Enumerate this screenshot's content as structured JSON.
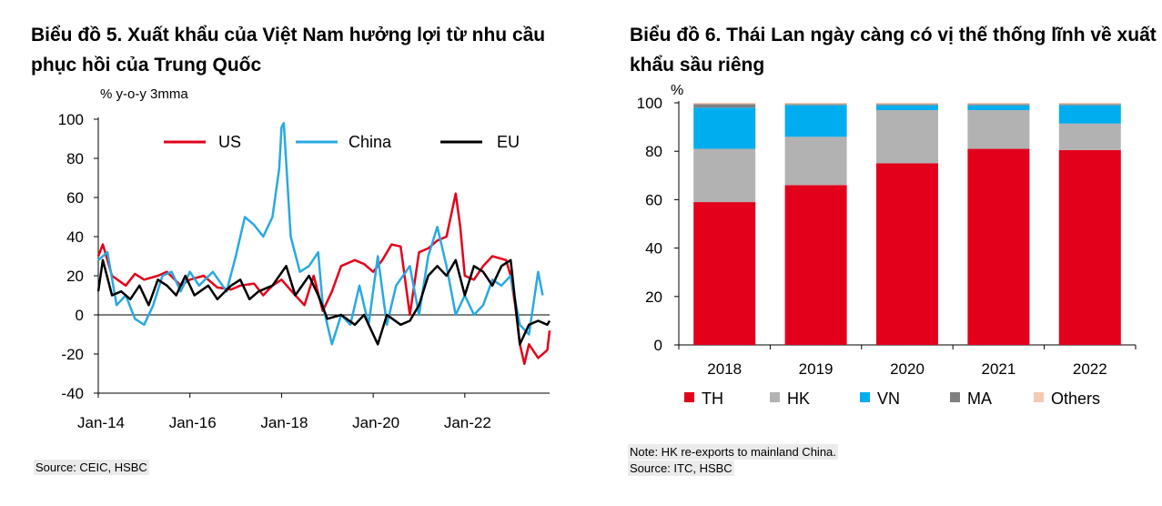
{
  "left_panel": {
    "title": "Biểu đồ 5. Xuất khẩu của Việt Nam hưởng lợi từ nhu cầu phục hồi của Trung Quốc",
    "source": "Source: CEIC, HSBC"
  },
  "right_panel": {
    "title": "Biểu đồ 6. Thái Lan ngày càng có vị thế thống lĩnh về xuất khẩu sầu riêng",
    "note": "Note: HK re-exports to mainland China.",
    "source": "Source: ITC, HSBC"
  },
  "chart_data": [
    {
      "type": "line",
      "ylabel": "% y-o-y 3mma",
      "ylim": [
        -40,
        100
      ],
      "yticks": [
        "100",
        "80",
        "60",
        "40",
        "20",
        "0",
        "-20",
        "-40"
      ],
      "xticks": [
        "Jan-14",
        "Jan-16",
        "Jan-18",
        "Jan-20",
        "Jan-22"
      ],
      "x_range": [
        "2014-01",
        "2023-10"
      ],
      "legend_position": "top",
      "series": [
        {
          "name": "US",
          "color": "#e3001b",
          "points": [
            [
              2014.0,
              30
            ],
            [
              2014.1,
              36
            ],
            [
              2014.3,
              20
            ],
            [
              2014.6,
              15
            ],
            [
              2014.8,
              21
            ],
            [
              2015.0,
              18
            ],
            [
              2015.3,
              20
            ],
            [
              2015.5,
              22
            ],
            [
              2015.8,
              15
            ],
            [
              2016.0,
              18
            ],
            [
              2016.3,
              20
            ],
            [
              2016.6,
              14
            ],
            [
              2016.9,
              13
            ],
            [
              2017.1,
              15
            ],
            [
              2017.4,
              16
            ],
            [
              2017.6,
              10
            ],
            [
              2017.8,
              15
            ],
            [
              2018.0,
              18
            ],
            [
              2018.3,
              10
            ],
            [
              2018.5,
              5
            ],
            [
              2018.7,
              20
            ],
            [
              2018.9,
              2
            ],
            [
              2019.1,
              12
            ],
            [
              2019.3,
              25
            ],
            [
              2019.6,
              28
            ],
            [
              2019.8,
              26
            ],
            [
              2020.0,
              22
            ],
            [
              2020.2,
              28
            ],
            [
              2020.4,
              36
            ],
            [
              2020.6,
              35
            ],
            [
              2020.8,
              0
            ],
            [
              2021.0,
              32
            ],
            [
              2021.2,
              34
            ],
            [
              2021.4,
              38
            ],
            [
              2021.6,
              40
            ],
            [
              2021.8,
              62
            ],
            [
              2021.9,
              45
            ],
            [
              2022.0,
              20
            ],
            [
              2022.2,
              18
            ],
            [
              2022.4,
              25
            ],
            [
              2022.6,
              30
            ],
            [
              2022.9,
              28
            ],
            [
              2023.0,
              20
            ],
            [
              2023.1,
              5
            ],
            [
              2023.2,
              -15
            ],
            [
              2023.3,
              -25
            ],
            [
              2023.4,
              -15
            ],
            [
              2023.6,
              -22
            ],
            [
              2023.8,
              -18
            ],
            [
              2023.85,
              -8
            ]
          ]
        },
        {
          "name": "China",
          "color": "#29a9e0",
          "points": [
            [
              2014.0,
              28
            ],
            [
              2014.2,
              32
            ],
            [
              2014.4,
              5
            ],
            [
              2014.6,
              10
            ],
            [
              2014.8,
              -2
            ],
            [
              2015.0,
              -5
            ],
            [
              2015.2,
              5
            ],
            [
              2015.4,
              20
            ],
            [
              2015.6,
              22
            ],
            [
              2015.8,
              12
            ],
            [
              2016.0,
              22
            ],
            [
              2016.2,
              15
            ],
            [
              2016.5,
              22
            ],
            [
              2016.8,
              12
            ],
            [
              2017.0,
              30
            ],
            [
              2017.2,
              50
            ],
            [
              2017.4,
              46
            ],
            [
              2017.6,
              40
            ],
            [
              2017.8,
              50
            ],
            [
              2017.95,
              75
            ],
            [
              2018.0,
              96
            ],
            [
              2018.05,
              98
            ],
            [
              2018.2,
              40
            ],
            [
              2018.4,
              22
            ],
            [
              2018.6,
              25
            ],
            [
              2018.8,
              32
            ],
            [
              2018.9,
              5
            ],
            [
              2019.1,
              -15
            ],
            [
              2019.3,
              0
            ],
            [
              2019.5,
              -5
            ],
            [
              2019.7,
              15
            ],
            [
              2019.9,
              -5
            ],
            [
              2020.1,
              30
            ],
            [
              2020.3,
              -5
            ],
            [
              2020.5,
              15
            ],
            [
              2020.8,
              25
            ],
            [
              2021.0,
              0
            ],
            [
              2021.2,
              30
            ],
            [
              2021.4,
              45
            ],
            [
              2021.6,
              25
            ],
            [
              2021.8,
              0
            ],
            [
              2022.0,
              10
            ],
            [
              2022.2,
              0
            ],
            [
              2022.4,
              5
            ],
            [
              2022.6,
              18
            ],
            [
              2022.8,
              15
            ],
            [
              2023.0,
              20
            ],
            [
              2023.2,
              -5
            ],
            [
              2023.4,
              -10
            ],
            [
              2023.6,
              22
            ],
            [
              2023.7,
              10
            ]
          ]
        },
        {
          "name": "EU",
          "color": "#000000",
          "points": [
            [
              2014.0,
              12
            ],
            [
              2014.1,
              28
            ],
            [
              2014.3,
              10
            ],
            [
              2014.5,
              12
            ],
            [
              2014.7,
              8
            ],
            [
              2014.9,
              15
            ],
            [
              2015.1,
              5
            ],
            [
              2015.3,
              18
            ],
            [
              2015.5,
              15
            ],
            [
              2015.7,
              10
            ],
            [
              2015.9,
              20
            ],
            [
              2016.1,
              10
            ],
            [
              2016.4,
              15
            ],
            [
              2016.6,
              8
            ],
            [
              2016.9,
              15
            ],
            [
              2017.1,
              18
            ],
            [
              2017.3,
              8
            ],
            [
              2017.5,
              12
            ],
            [
              2017.8,
              15
            ],
            [
              2018.1,
              25
            ],
            [
              2018.3,
              10
            ],
            [
              2018.6,
              20
            ],
            [
              2018.8,
              10
            ],
            [
              2019.0,
              -2
            ],
            [
              2019.3,
              0
            ],
            [
              2019.6,
              -5
            ],
            [
              2019.8,
              0
            ],
            [
              2020.1,
              -15
            ],
            [
              2020.3,
              0
            ],
            [
              2020.6,
              -5
            ],
            [
              2020.8,
              -3
            ],
            [
              2021.0,
              5
            ],
            [
              2021.2,
              20
            ],
            [
              2021.4,
              25
            ],
            [
              2021.6,
              20
            ],
            [
              2021.8,
              28
            ],
            [
              2022.0,
              10
            ],
            [
              2022.2,
              25
            ],
            [
              2022.4,
              22
            ],
            [
              2022.6,
              15
            ],
            [
              2022.8,
              25
            ],
            [
              2023.0,
              28
            ],
            [
              2023.2,
              -15
            ],
            [
              2023.4,
              -5
            ],
            [
              2023.6,
              -3
            ],
            [
              2023.8,
              -5
            ],
            [
              2023.85,
              -3
            ]
          ]
        }
      ]
    },
    {
      "type": "bar",
      "stacked": true,
      "ylabel": "%",
      "ylim": [
        0,
        100
      ],
      "yticks": [
        "100",
        "80",
        "60",
        "40",
        "20",
        "0"
      ],
      "categories": [
        "2018",
        "2019",
        "2020",
        "2021",
        "2022"
      ],
      "legend_position": "bottom",
      "series": [
        {
          "name": "TH",
          "color": "#e3001b",
          "values": [
            59,
            66,
            75,
            81,
            80.5
          ]
        },
        {
          "name": "HK",
          "color": "#b2b2b2",
          "values": [
            22,
            20,
            22,
            16,
            11
          ]
        },
        {
          "name": "VN",
          "color": "#00aeef",
          "values": [
            17,
            13,
            2,
            2,
            7.5
          ]
        },
        {
          "name": "MA",
          "color": "#808080",
          "values": [
            1.5,
            0.5,
            0.5,
            0.5,
            0.5
          ]
        },
        {
          "name": "Others",
          "color": "#f6c9b5",
          "values": [
            0.5,
            0.5,
            0.5,
            0.5,
            0.5
          ]
        }
      ]
    }
  ]
}
